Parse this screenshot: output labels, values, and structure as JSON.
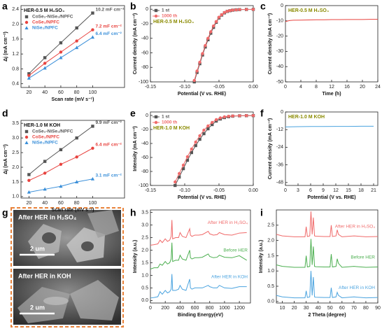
{
  "chart_data": [
    {
      "type": "line",
      "panel": "a",
      "title": "HER-0.5 M H₂SO₄",
      "xlabel": "Scan rate (mV s⁻¹)",
      "ylabel": "Δj (mA cm⁻²)",
      "x": [
        20,
        40,
        60,
        80,
        100
      ],
      "xlim": [
        10,
        140
      ],
      "xticks": [
        20,
        40,
        60,
        80,
        100
      ],
      "ylim": [
        0.3,
        2.5
      ],
      "yticks": [
        0.4,
        0.8,
        1.2,
        1.6,
        {
          "value": 2.0,
          "label": "2.0"
        },
        2.4
      ],
      "legend": "top-left",
      "series": [
        {
          "name": "CoSe₂-NiSe₂/NPFC",
          "color": "#555555",
          "marker": "square",
          "values": [
            0.67,
            1.1,
            1.5,
            1.9,
            2.3
          ],
          "annotation": "10.2 mF cm⁻²"
        },
        {
          "name": "CoSe₂/NPFC",
          "color": "#e8433f",
          "marker": "circle",
          "values": [
            0.62,
            0.95,
            1.25,
            1.55,
            1.85
          ],
          "annotation": "7.2 mF cm⁻²"
        },
        {
          "name": "NiSe₂/NPFC",
          "color": "#3a8fd9",
          "marker": "triangle",
          "values": [
            0.55,
            0.82,
            1.1,
            1.37,
            1.65
          ],
          "annotation": "6.4 mF cm⁻²"
        }
      ]
    },
    {
      "type": "line",
      "panel": "b",
      "title": "HER-0.5 M H₂SO₄",
      "xlabel": "Potential (V vs. RHE)",
      "ylabel": "Current density (mA cm⁻²)",
      "x": [
        -0.086,
        -0.082,
        -0.078,
        -0.074,
        -0.07,
        -0.066,
        -0.062,
        -0.058,
        -0.054,
        -0.05,
        -0.046,
        -0.042,
        -0.038,
        -0.034,
        -0.03,
        -0.025,
        -0.02,
        -0.01,
        0.0
      ],
      "xlim": [
        -0.15,
        0
      ],
      "xticks": [
        -0.15,
        {
          "value": -0.1,
          "label": "-0.10"
        },
        -0.05,
        {
          "value": 0,
          "label": "0.00"
        }
      ],
      "ylim": [
        -100,
        5
      ],
      "yticks": [
        0,
        -20,
        -40,
        -60,
        -80,
        -100
      ],
      "legend": "top-left",
      "series": [
        {
          "name": "1 st",
          "color": "#555555",
          "marker": "square",
          "values": [
            -100,
            -87,
            -75,
            -63,
            -52,
            -42,
            -33,
            -25,
            -18,
            -12,
            -8,
            -5,
            -3,
            -2,
            -1.3,
            -0.8,
            -0.5,
            -0.3,
            -0.2
          ]
        },
        {
          "name": "1000 th",
          "color": "#f06a6a",
          "marker": "circle",
          "values": [
            -98,
            -85,
            -73,
            -61,
            -50,
            -40,
            -31,
            -23,
            -17,
            -11,
            -7.5,
            -4.5,
            -2.8,
            -1.8,
            -1.2,
            -0.8,
            -0.5,
            -0.3,
            -0.2
          ]
        }
      ]
    },
    {
      "type": "line",
      "panel": "c",
      "title": "HER-0.5 M H₂SO₄",
      "xlabel": "Time (h)",
      "ylabel": "Current density (mA cm⁻²)",
      "x": [
        0,
        1,
        2,
        4,
        6,
        8,
        10,
        12,
        14,
        16,
        18,
        20,
        22,
        24
      ],
      "xlim": [
        0,
        24
      ],
      "xticks": [
        0,
        4,
        8,
        12,
        16,
        20,
        24
      ],
      "ylim": [
        -50,
        0
      ],
      "yticks": [
        0,
        -10,
        -20,
        -30,
        -40,
        -50
      ],
      "series": [
        {
          "color": "#e8433f",
          "values": [
            -10.5,
            -9.8,
            -9.6,
            -9.5,
            -9.4,
            -9.3,
            -9.3,
            -9.2,
            -9.2,
            -9.1,
            -9.1,
            -9.1,
            -9.0,
            -9.0
          ]
        }
      ]
    },
    {
      "type": "line",
      "panel": "d",
      "title": "HER-1.0 M KOH",
      "xlabel": "Scan rate (mV s⁻¹)",
      "ylabel": "Δj (mA cm⁻²)",
      "x": [
        20,
        40,
        60,
        80,
        100
      ],
      "xlim": [
        10,
        140
      ],
      "xticks": [
        20,
        40,
        60,
        80,
        100
      ],
      "ylim": [
        0.95,
        3.6
      ],
      "yticks": [
        {
          "value": 1.0,
          "label": "1.0"
        },
        1.5,
        {
          "value": 2.0,
          "label": "2.0"
        },
        2.5,
        {
          "value": 3.0,
          "label": "3.0"
        },
        3.5
      ],
      "legend": "top-left",
      "series": [
        {
          "name": "CoSe₂-NiSe₂/NPFC",
          "color": "#555555",
          "marker": "square",
          "values": [
            1.75,
            2.2,
            2.6,
            3.0,
            3.4
          ],
          "annotation": "9.9 mF cm⁻²"
        },
        {
          "name": "CoSe₂/NPFC",
          "color": "#e8433f",
          "marker": "circle",
          "values": [
            1.55,
            1.8,
            2.1,
            2.35,
            2.65
          ],
          "annotation": "6.4 mF cm⁻²"
        },
        {
          "name": "NiSe₂/NPFC",
          "color": "#3a8fd9",
          "marker": "triangle",
          "values": [
            1.15,
            1.25,
            1.35,
            1.5,
            1.6
          ],
          "annotation": "3.1 mF cm⁻²"
        }
      ]
    },
    {
      "type": "line",
      "panel": "e",
      "title": "HER-1.0 M KOH",
      "xlabel": "Potential (V vs. RHE)",
      "ylabel": "Intensity (mA cm⁻²)",
      "x": [
        -0.114,
        -0.108,
        -0.102,
        -0.096,
        -0.09,
        -0.084,
        -0.078,
        -0.072,
        -0.066,
        -0.06,
        -0.054,
        -0.048,
        -0.042,
        -0.036,
        -0.03,
        -0.02,
        -0.01,
        0.0
      ],
      "xlim": [
        -0.15,
        0
      ],
      "xticks": [
        -0.15,
        {
          "value": -0.1,
          "label": "-0.10"
        },
        -0.05,
        {
          "value": 0,
          "label": "0.00"
        }
      ],
      "ylim": [
        -100,
        5
      ],
      "yticks": [
        0,
        -20,
        -40,
        -60,
        -80,
        -100
      ],
      "legend": "top-left",
      "series": [
        {
          "name": "1 st",
          "color": "#555555",
          "marker": "square",
          "values": [
            -100,
            -88,
            -76,
            -64,
            -53,
            -43,
            -34,
            -26,
            -19,
            -13,
            -8,
            -5,
            -3,
            -1.8,
            -1,
            -0.5,
            -0.3,
            -0.2
          ]
        },
        {
          "name": "1000 th",
          "color": "#f06a6a",
          "marker": "circle",
          "values": [
            -95,
            -83,
            -71,
            -59,
            -48,
            -38,
            -29,
            -21,
            -15,
            -10,
            -6,
            -3.5,
            -2,
            -1.2,
            -0.7,
            -0.4,
            -0.2,
            -0.1
          ]
        }
      ]
    },
    {
      "type": "line",
      "panel": "f",
      "title": "HER-1.0 M KOH",
      "xlabel": "Potential (V vs. RHE)",
      "ylabel": "Current density (mA cm⁻²)",
      "x": [
        0,
        3,
        6,
        9,
        12,
        15,
        18,
        21
      ],
      "xlim": [
        0,
        22
      ],
      "xticks": [
        0,
        3,
        6,
        9,
        12,
        15,
        18,
        21
      ],
      "ylim": [
        -50,
        0
      ],
      "yticks": [
        0,
        -12,
        -24,
        -36,
        -48
      ],
      "series": [
        {
          "color": "#4aa3df",
          "values": [
            -10.2,
            -10.0,
            -9.9,
            -9.9,
            -9.8,
            -9.8,
            -9.7,
            -9.7
          ]
        }
      ]
    },
    {
      "type": "line",
      "panel": "h",
      "xlabel": "Binding Energy(eV)",
      "ylabel": "Intensity (a.u.)",
      "x": [
        0,
        50,
        100,
        130,
        160,
        200,
        230,
        260,
        280,
        290,
        300,
        340,
        380,
        400,
        430,
        480,
        530,
        540,
        560,
        600,
        650,
        700,
        780,
        800,
        850,
        900,
        930,
        1000,
        1100,
        1200,
        1300
      ],
      "xlim": [
        0,
        1350
      ],
      "xticks": [
        0,
        200,
        400,
        600,
        800,
        1000,
        1200
      ],
      "ylim": [
        -0.1,
        3.6
      ],
      "yticks": [
        {
          "value": 0,
          "label": "0.0"
        },
        0.5,
        {
          "value": 1,
          "label": "1.0"
        },
        1.5,
        {
          "value": 2,
          "label": "2.0"
        },
        2.5,
        {
          "value": 3,
          "label": "3.0"
        },
        3.5
      ],
      "legend": "inline",
      "series": [
        {
          "name": "After HER in H₂SO₄",
          "color": "#f06a6a",
          "values": [
            2.2,
            2.22,
            2.25,
            2.4,
            2.3,
            2.45,
            2.35,
            2.4,
            2.55,
            3.2,
            2.45,
            2.5,
            2.5,
            2.7,
            2.55,
            2.5,
            2.85,
            2.6,
            2.55,
            2.6,
            2.6,
            2.62,
            2.75,
            2.65,
            2.6,
            2.62,
            2.7,
            2.62,
            2.6,
            2.68,
            2.7
          ]
        },
        {
          "name": "Before HER",
          "color": "#4caf50",
          "values": [
            1.25,
            1.3,
            1.3,
            1.45,
            1.4,
            1.55,
            1.45,
            1.5,
            1.65,
            2.3,
            1.55,
            1.6,
            1.6,
            1.8,
            1.65,
            1.6,
            2.0,
            1.7,
            1.65,
            1.7,
            1.7,
            1.72,
            1.85,
            1.75,
            1.7,
            1.72,
            1.8,
            1.72,
            1.7,
            1.78,
            1.6
          ]
        },
        {
          "name": "After HER in KOH",
          "color": "#4aa3df",
          "values": [
            0.1,
            0.12,
            0.15,
            0.35,
            0.25,
            0.4,
            0.3,
            0.35,
            0.45,
            1.05,
            0.4,
            0.4,
            0.45,
            0.6,
            0.45,
            0.4,
            0.85,
            0.5,
            0.45,
            0.5,
            0.5,
            0.5,
            0.6,
            0.55,
            0.5,
            0.5,
            0.6,
            0.5,
            0.48,
            0.55,
            0.55
          ]
        }
      ]
    },
    {
      "type": "line",
      "panel": "i",
      "xlabel": "2 Theta (degree)",
      "ylabel": "Intensity (a.u.)",
      "x": [
        5,
        10,
        20,
        29,
        30,
        31,
        33,
        34,
        35,
        36,
        37,
        38,
        45,
        50,
        51,
        52,
        55,
        56,
        57,
        60,
        70,
        80,
        90
      ],
      "xlim": [
        5,
        90
      ],
      "xticks": [
        10,
        20,
        30,
        40,
        50,
        60,
        70,
        80,
        90
      ],
      "ylim": [
        -0.05,
        3.0
      ],
      "yticks": [
        {
          "value": 0,
          "label": "0.0"
        },
        0.5,
        {
          "value": 1,
          "label": "1.0"
        },
        1.5,
        {
          "value": 2,
          "label": "2.0"
        },
        2.5
      ],
      "legend": "inline",
      "series": [
        {
          "name": "After HER in H₂SO₄",
          "color": "#f06a6a",
          "values": [
            2.2,
            2.15,
            2.12,
            2.12,
            2.45,
            2.13,
            2.15,
            2.95,
            2.2,
            2.75,
            2.15,
            2.14,
            2.13,
            2.13,
            2.5,
            2.13,
            2.15,
            2.35,
            2.2,
            2.12,
            2.15,
            2.12,
            2.13
          ]
        },
        {
          "name": "Before HER",
          "color": "#4caf50",
          "values": [
            1.2,
            1.15,
            1.12,
            1.12,
            1.5,
            1.13,
            1.15,
            2.05,
            1.2,
            1.8,
            1.15,
            1.14,
            1.13,
            1.13,
            1.55,
            1.13,
            1.15,
            1.4,
            1.25,
            1.12,
            1.15,
            1.12,
            1.13
          ]
        },
        {
          "name": "After HER in KOH",
          "color": "#4aa3df",
          "values": [
            0.2,
            0.15,
            0.12,
            0.12,
            0.35,
            0.13,
            0.15,
            1.0,
            0.2,
            0.8,
            0.15,
            0.14,
            0.13,
            0.13,
            0.45,
            0.13,
            0.15,
            0.3,
            0.2,
            0.12,
            0.15,
            0.12,
            0.13
          ]
        }
      ]
    }
  ],
  "images": {
    "panel": "g",
    "top": {
      "caption": "After HER in H₂SO₄",
      "scale": "2 um"
    },
    "bottom": {
      "caption": "After HER in KOH",
      "scale": "2 um"
    }
  }
}
